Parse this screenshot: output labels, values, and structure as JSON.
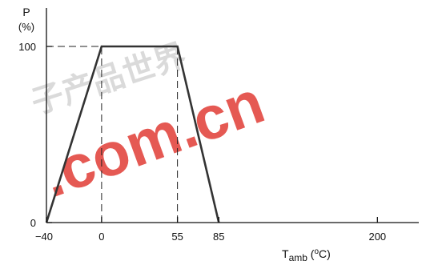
{
  "chart_data": {
    "type": "line",
    "title": "",
    "y_axis": {
      "symbol": "P",
      "unit": "(%)",
      "ticks": [
        "0",
        "100"
      ],
      "range": [
        0,
        160
      ]
    },
    "x_axis": {
      "symbol": "T",
      "subscript": "amb",
      "unit_open": " (",
      "unit_sup": "o",
      "unit_rest": "C)",
      "ticks": [
        "−40",
        "0",
        "55",
        "85",
        "200"
      ],
      "tick_values": [
        -40,
        0,
        55,
        85,
        200
      ],
      "range": [
        -40,
        230
      ]
    },
    "series": [
      {
        "x": [
          -40,
          0,
          55,
          85
        ],
        "y": [
          0,
          100,
          100,
          0
        ]
      }
    ],
    "guides": {
      "h": [
        [
          -40,
          100,
          0
        ]
      ],
      "v": [
        [
          0,
          0,
          100
        ],
        [
          55,
          0,
          100
        ]
      ]
    },
    "grid": false,
    "legend": "none"
  },
  "watermark": {
    "text": ".com.cn",
    "chinese": "子产品世界"
  }
}
